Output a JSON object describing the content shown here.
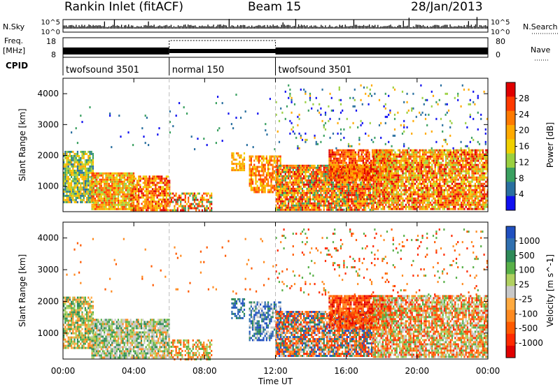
{
  "header": {
    "station": "Rankin Inlet (fitACF)",
    "beam": "Beam 15",
    "date": "28/Jan/2013"
  },
  "noise_panel": {
    "left_label": "N.Sky",
    "right_label": "N.Search",
    "ticks": [
      "10^5",
      "10^0"
    ]
  },
  "freq_panel": {
    "left_label_1": "Freq.",
    "left_label_2": "[MHz]",
    "left_ticks": [
      "18",
      "8"
    ],
    "right_label": "Nave",
    "right_ticks": [
      "80",
      "0"
    ]
  },
  "cpid_panel": {
    "label": "CPID",
    "segments": [
      {
        "name": "twofsound 3501",
        "start_hr": 0,
        "end_hr": 6
      },
      {
        "name": "normal 150",
        "start_hr": 6,
        "end_hr": 12
      },
      {
        "name": "twofsound 3501",
        "start_hr": 12,
        "end_hr": 24
      }
    ]
  },
  "chart_data": [
    {
      "type": "heatmap",
      "quantity": "Power",
      "xlabel": "Time UT",
      "ylabel": "Slant Range [km]",
      "x_ticks": [
        "00:00",
        "04:00",
        "08:00",
        "12:00",
        "16:00",
        "20:00",
        "00:00"
      ],
      "xlim_hours": [
        0,
        24
      ],
      "ylim_km": [
        180,
        4500
      ],
      "y_ticks": [
        1000,
        2000,
        3000,
        4000
      ],
      "colorbar": {
        "label": "Power [dB]",
        "ticks": [
          "28",
          "24",
          "20",
          "16",
          "12",
          "8",
          "4"
        ],
        "colors": [
          "#e00000",
          "#ff3a00",
          "#ff7a00",
          "#ffaa00",
          "#f0d000",
          "#9ad040",
          "#3aa060",
          "#2a70a0",
          "#1010f0"
        ]
      },
      "regions": [
        {
          "t0": 0.0,
          "t1": 1.7,
          "r0": 500,
          "r1": 2150,
          "density": 0.85,
          "levels": [
            3,
            4,
            5,
            6,
            7
          ]
        },
        {
          "t0": 1.6,
          "t1": 4.0,
          "r0": 250,
          "r1": 1450,
          "density": 0.9,
          "levels": [
            1,
            2,
            3,
            4,
            5
          ]
        },
        {
          "t0": 3.8,
          "t1": 6.0,
          "r0": 250,
          "r1": 1350,
          "density": 0.8,
          "levels": [
            0,
            1,
            2,
            3,
            4
          ]
        },
        {
          "t0": 6.0,
          "t1": 8.4,
          "r0": 200,
          "r1": 800,
          "density": 0.6,
          "levels": [
            0,
            1,
            2,
            4,
            6
          ]
        },
        {
          "t0": 9.5,
          "t1": 10.2,
          "r0": 1500,
          "r1": 2100,
          "density": 0.6,
          "levels": [
            2,
            3,
            4
          ]
        },
        {
          "t0": 10.5,
          "t1": 12.3,
          "r0": 800,
          "r1": 2000,
          "density": 0.7,
          "levels": [
            1,
            2,
            3,
            4
          ]
        },
        {
          "t0": 12.0,
          "t1": 17.5,
          "r0": 250,
          "r1": 1700,
          "density": 0.9,
          "levels": [
            0,
            1,
            2,
            3,
            4,
            6
          ]
        },
        {
          "t0": 15.0,
          "t1": 18.5,
          "r0": 1200,
          "r1": 2200,
          "density": 0.85,
          "levels": [
            0,
            1,
            2,
            3
          ]
        },
        {
          "t0": 17.5,
          "t1": 24.0,
          "r0": 250,
          "r1": 2200,
          "density": 0.85,
          "levels": [
            0,
            1,
            2,
            3,
            4,
            5
          ]
        },
        {
          "t0": 12.0,
          "t1": 24.0,
          "r0": 2200,
          "r1": 4300,
          "density": 0.06,
          "levels": [
            3,
            5,
            6,
            7,
            8
          ]
        },
        {
          "t0": 0.0,
          "t1": 12.0,
          "r0": 2200,
          "r1": 4000,
          "density": 0.015,
          "levels": [
            6,
            7,
            8
          ]
        }
      ]
    },
    {
      "type": "heatmap",
      "quantity": "Velocity",
      "xlabel": "Time UT",
      "ylabel": "Slant Range [km]",
      "x_ticks": [
        "00:00",
        "04:00",
        "08:00",
        "12:00",
        "16:00",
        "20:00",
        "00:00"
      ],
      "xlim_hours": [
        0,
        24
      ],
      "ylim_km": [
        180,
        4500
      ],
      "y_ticks": [
        1000,
        2000,
        3000,
        4000
      ],
      "colorbar": {
        "label": "Velocity [m s^-1]",
        "ticks": [
          "1000",
          "500",
          "100",
          "25",
          "-25",
          "-100",
          "-500",
          "-1000"
        ],
        "colors": [
          "#2050c0",
          "#3070b0",
          "#2e8a58",
          "#58b048",
          "#b0d060",
          "#c8c8c8",
          "#ffaa40",
          "#ff8a20",
          "#ff5a00",
          "#ff2a00",
          "#e00000"
        ]
      },
      "regions": [
        {
          "t0": 0.0,
          "t1": 1.7,
          "r0": 500,
          "r1": 2150,
          "density": 0.8,
          "levels": [
            2,
            3,
            4,
            6,
            7
          ]
        },
        {
          "t0": 1.6,
          "t1": 6.0,
          "r0": 250,
          "r1": 1450,
          "density": 0.85,
          "levels": [
            2,
            3,
            4,
            5,
            5,
            7
          ]
        },
        {
          "t0": 6.0,
          "t1": 8.4,
          "r0": 200,
          "r1": 800,
          "density": 0.55,
          "levels": [
            3,
            4,
            7,
            8
          ]
        },
        {
          "t0": 9.5,
          "t1": 10.2,
          "r0": 1500,
          "r1": 2100,
          "density": 0.6,
          "levels": [
            0,
            1,
            2
          ]
        },
        {
          "t0": 10.5,
          "t1": 12.3,
          "r0": 800,
          "r1": 2000,
          "density": 0.65,
          "levels": [
            0,
            1,
            2,
            5
          ]
        },
        {
          "t0": 12.0,
          "t1": 17.5,
          "r0": 250,
          "r1": 1700,
          "density": 0.85,
          "levels": [
            0,
            2,
            5,
            7,
            8,
            9
          ]
        },
        {
          "t0": 15.0,
          "t1": 18.5,
          "r0": 1200,
          "r1": 2200,
          "density": 0.85,
          "levels": [
            7,
            8,
            9,
            10
          ]
        },
        {
          "t0": 17.5,
          "t1": 24.0,
          "r0": 250,
          "r1": 2200,
          "density": 0.8,
          "levels": [
            3,
            4,
            5,
            7,
            8,
            9
          ]
        },
        {
          "t0": 12.0,
          "t1": 24.0,
          "r0": 2200,
          "r1": 4300,
          "density": 0.06,
          "levels": [
            3,
            7,
            8,
            9
          ]
        },
        {
          "t0": 0.0,
          "t1": 12.0,
          "r0": 2200,
          "r1": 4000,
          "density": 0.015,
          "levels": [
            7,
            8
          ]
        }
      ]
    }
  ]
}
